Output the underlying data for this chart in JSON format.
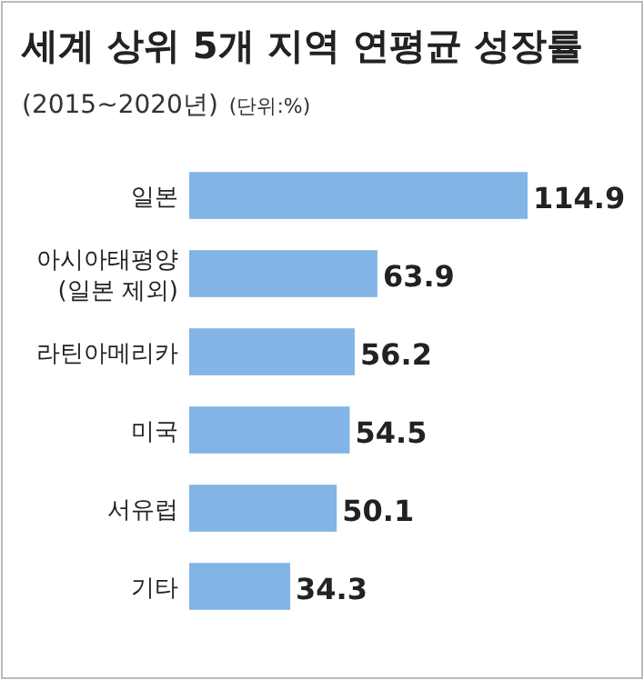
{
  "chart_data": {
    "type": "bar",
    "orientation": "horizontal",
    "title": "세계 상위 5개 지역 연평균 성장률",
    "subtitle": "(2015~2020년)",
    "annotations": [
      "(단위:%)"
    ],
    "categories": [
      "일본",
      "아시아태평양 (일본 제외)",
      "라틴아메리카",
      "미국",
      "서유럽",
      "기타"
    ],
    "values": [
      114.9,
      63.9,
      56.2,
      54.5,
      50.1,
      34.3
    ],
    "color": "#82b4e6",
    "data_labels": true
  }
}
